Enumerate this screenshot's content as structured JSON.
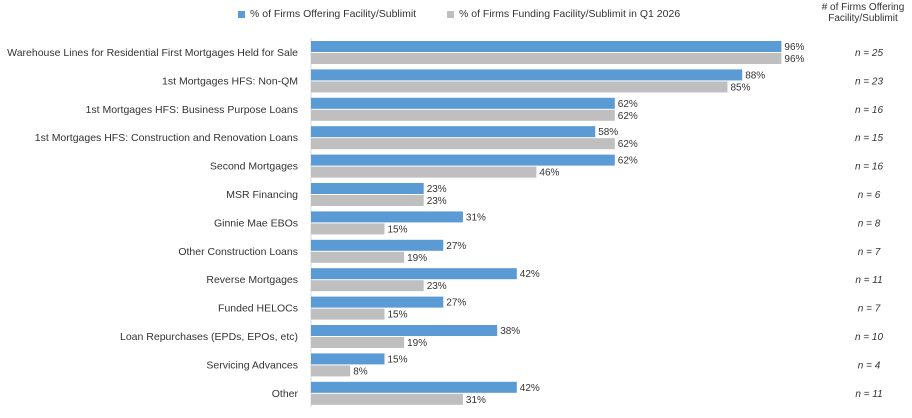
{
  "legend": {
    "offering": "% of Firms Offering Facility/Sublimit",
    "funding": "% of Firms Funding Facility/Sublimit in Q1 2026"
  },
  "n_column_header": "# of Firms Offering Facility/Sublimit",
  "colors": {
    "offering": "#5b9bd5",
    "funding": "#bfbfbf"
  },
  "chart_data": {
    "type": "bar",
    "orientation": "horizontal",
    "xlim": [
      0,
      100
    ],
    "grid": false,
    "legend_position": "top",
    "categories": [
      "Warehouse Lines for Residential First Mortgages Held for Sale",
      "1st Mortgages HFS: Non-QM",
      "1st Mortgages HFS: Business Purpose Loans",
      "1st Mortgages HFS: Construction and Renovation Loans",
      "Second Mortgages",
      "MSR Financing",
      "Ginnie Mae EBOs",
      "Other Construction Loans",
      "Reverse Mortgages",
      "Funded HELOCs",
      "Loan Repurchases (EPDs, EPOs, etc)",
      "Servicing Advances",
      "Other"
    ],
    "series": [
      {
        "name": "% of Firms Offering Facility/Sublimit",
        "values": [
          96,
          88,
          62,
          58,
          62,
          23,
          31,
          27,
          42,
          27,
          38,
          15,
          42
        ]
      },
      {
        "name": "% of Firms Funding Facility/Sublimit in Q1 2026",
        "values": [
          96,
          85,
          62,
          62,
          46,
          23,
          15,
          19,
          23,
          15,
          19,
          8,
          31
        ]
      }
    ],
    "value_labels": {
      "offering": [
        "96%",
        "88%",
        "62%",
        "58%",
        "62%",
        "23%",
        "31%",
        "27%",
        "42%",
        "27%",
        "38%",
        "15%",
        "42%"
      ],
      "funding": [
        "96%",
        "85%",
        "62%",
        "62%",
        "46%",
        "23%",
        "15%",
        "19%",
        "23%",
        "15%",
        "19%",
        "8%",
        "31%"
      ]
    },
    "n_labels": [
      "n = 25",
      "n = 23",
      "n = 16",
      "n = 15",
      "n = 16",
      "n = 6",
      "n = 8",
      "n = 7",
      "n = 11",
      "n = 7",
      "n = 10",
      "n = 4",
      "n = 11"
    ]
  }
}
